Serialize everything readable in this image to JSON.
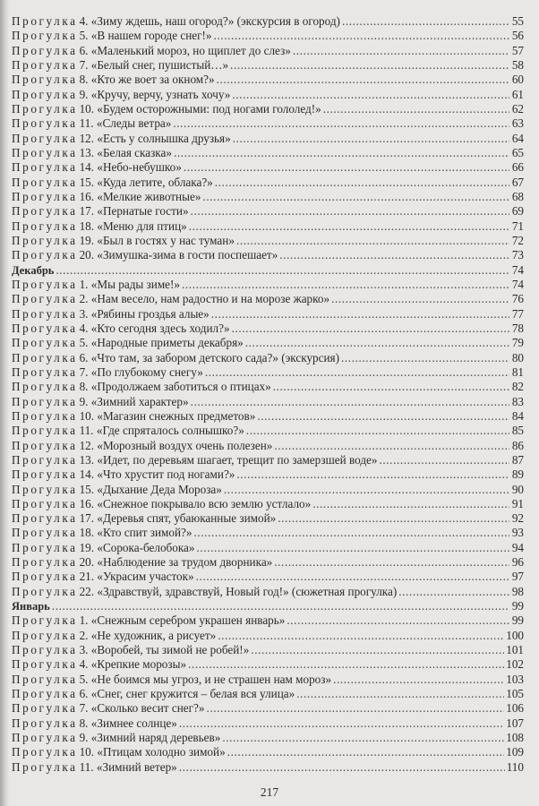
{
  "walk_prefix": "Прогулка",
  "entries": [
    {
      "type": "walk",
      "num": "4.",
      "title": "«Зиму ждешь, наш огород?» (экскурсия в огород)",
      "page": "55"
    },
    {
      "type": "walk",
      "num": "5.",
      "title": "«В нашем городе снег!»",
      "page": "56"
    },
    {
      "type": "walk",
      "num": "6.",
      "title": "«Маленький мороз, но щиплет до слез»",
      "page": "57"
    },
    {
      "type": "walk",
      "num": "7.",
      "title": "«Белый снег, пушистый…»",
      "page": "58"
    },
    {
      "type": "walk",
      "num": "8.",
      "title": "«Кто же воет за окном?»",
      "page": "60"
    },
    {
      "type": "walk",
      "num": "9.",
      "title": "«Кручу, верчу, узнать хочу»",
      "page": "61"
    },
    {
      "type": "walk",
      "num": "10.",
      "title": "«Будем осторожными: под ногами гололед!»",
      "page": "62"
    },
    {
      "type": "walk",
      "num": "11.",
      "title": "«Следы ветра»",
      "page": "63"
    },
    {
      "type": "walk",
      "num": "12.",
      "title": "«Есть у солнышка друзья»",
      "page": "64"
    },
    {
      "type": "walk",
      "num": "13.",
      "title": "«Белая сказка»",
      "page": "65"
    },
    {
      "type": "walk",
      "num": "14.",
      "title": "«Небо-небушко»",
      "page": "66"
    },
    {
      "type": "walk",
      "num": "15.",
      "title": "«Куда летите, облака?»",
      "page": "67"
    },
    {
      "type": "walk",
      "num": "16.",
      "title": "«Мелкие животные»",
      "page": "68"
    },
    {
      "type": "walk",
      "num": "17.",
      "title": "«Пернатые гости»",
      "page": "69"
    },
    {
      "type": "walk",
      "num": "18.",
      "title": "«Меню для птиц»",
      "page": "71"
    },
    {
      "type": "walk",
      "num": "19.",
      "title": "«Был в гостях у нас туман»",
      "page": "72"
    },
    {
      "type": "walk",
      "num": "20.",
      "title": "«Зимушка-зима в гости поспешает»",
      "page": "73"
    },
    {
      "type": "section",
      "title": "Декабрь",
      "page": "74"
    },
    {
      "type": "walk",
      "num": "1.",
      "title": "«Мы рады зиме!»",
      "page": "74"
    },
    {
      "type": "walk",
      "num": "2.",
      "title": "«Нам весело, нам радостно и на морозе жарко»",
      "page": "76"
    },
    {
      "type": "walk",
      "num": "3.",
      "title": "«Рябины гроздья алые»",
      "page": "77"
    },
    {
      "type": "walk",
      "num": "4.",
      "title": "«Кто сегодня здесь ходил?»",
      "page": "78"
    },
    {
      "type": "walk",
      "num": "5.",
      "title": "«Народные приметы декабря»",
      "page": "79"
    },
    {
      "type": "walk",
      "num": "6.",
      "title": "«Что там, за забором детского сада?» (экскурсия)",
      "page": "80"
    },
    {
      "type": "walk",
      "num": "7.",
      "title": "«По глубокому снегу»",
      "page": "81"
    },
    {
      "type": "walk",
      "num": "8.",
      "title": "«Продолжаем заботиться о птицах»",
      "page": "82"
    },
    {
      "type": "walk",
      "num": "9.",
      "title": "«Зимний характер»",
      "page": "83"
    },
    {
      "type": "walk",
      "num": "10.",
      "title": "«Магазин снежных предметов»",
      "page": "84"
    },
    {
      "type": "walk",
      "num": "11.",
      "title": "«Где спряталось солнышко?»",
      "page": "85"
    },
    {
      "type": "walk",
      "num": "12.",
      "title": "«Морозный воздух очень полезен»",
      "page": "86"
    },
    {
      "type": "walk",
      "num": "13.",
      "title": "«Идет, по деревьям шагает, трещит по замерзшей воде»",
      "page": "87"
    },
    {
      "type": "walk",
      "num": "14.",
      "title": "«Что хрустит под ногами?»",
      "page": "89"
    },
    {
      "type": "walk",
      "num": "15.",
      "title": "«Дыхание Деда Мороза»",
      "page": "90"
    },
    {
      "type": "walk",
      "num": "16.",
      "title": "«Снежное покрывало всю землю устлало»",
      "page": "91"
    },
    {
      "type": "walk",
      "num": "17.",
      "title": "«Деревья спят, убаюканные зимой»",
      "page": "92"
    },
    {
      "type": "walk",
      "num": "18.",
      "title": "«Кто спит зимой?»",
      "page": "93"
    },
    {
      "type": "walk",
      "num": "19.",
      "title": "«Сорока-белобока»",
      "page": "94"
    },
    {
      "type": "walk",
      "num": "20.",
      "title": "«Наблюдение за трудом дворника»",
      "page": "96"
    },
    {
      "type": "walk",
      "num": "21.",
      "title": "«Украсим участок»",
      "page": "97"
    },
    {
      "type": "walk",
      "num": "22.",
      "title": "«Здравствуй, здравствуй, Новый год!» (сюжетная прогулка)",
      "page": "98"
    },
    {
      "type": "section",
      "title": "Январь",
      "page": "99"
    },
    {
      "type": "walk",
      "num": "1.",
      "title": "«Снежным серебром украшен январь»",
      "page": "99"
    },
    {
      "type": "walk",
      "num": "2.",
      "title": "«Не художник, а рисует»",
      "page": "100"
    },
    {
      "type": "walk",
      "num": "3.",
      "title": "«Воробей, ты зимой не робей!»",
      "page": "101"
    },
    {
      "type": "walk",
      "num": "4.",
      "title": "«Крепкие морозы»",
      "page": "102"
    },
    {
      "type": "walk",
      "num": "5.",
      "title": "«Не боимся мы угроз, и не страшен нам мороз»",
      "page": "103"
    },
    {
      "type": "walk",
      "num": "6.",
      "title": "«Снег, снег кружится – белая вся улица»",
      "page": "105"
    },
    {
      "type": "walk",
      "num": "7.",
      "title": "«Сколько весит снег?»",
      "page": "106"
    },
    {
      "type": "walk",
      "num": "8.",
      "title": "«Зимнее солнце»",
      "page": "107"
    },
    {
      "type": "walk",
      "num": "9.",
      "title": "«Зимний наряд деревьев»",
      "page": "108"
    },
    {
      "type": "walk",
      "num": "10.",
      "title": "«Птицам холодно зимой»",
      "page": "109"
    },
    {
      "type": "walk",
      "num": "11.",
      "title": "«Зимний ветер»",
      "page": "110"
    }
  ],
  "page_number": "217"
}
